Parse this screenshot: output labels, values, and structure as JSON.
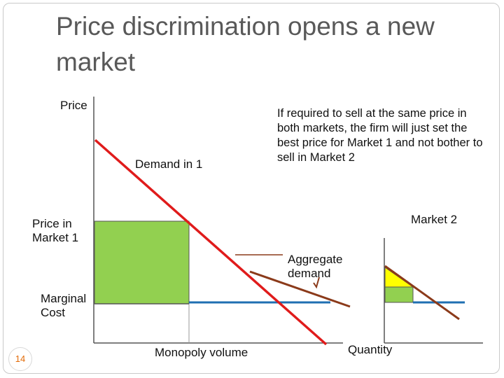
{
  "slide": {
    "title_line1": "Price discrimination opens a new",
    "title_line2": "market",
    "slide_number": "14"
  },
  "labels": {
    "price_axis": "Price",
    "demand_in_1": "Demand in 1",
    "price_in_market_1_line1": "Price in",
    "price_in_market_1_line2": "Market 1",
    "marginal_cost_line1": "Marginal",
    "marginal_cost_line2": "Cost",
    "monopoly_volume": "Monopoly volume",
    "quantity": "Quantity",
    "market_2": "Market 2",
    "aggregate_demand_line1": "Aggregate",
    "aggregate_demand_line2": "demand"
  },
  "note": {
    "text": "If required to sell at the same price in both markets, the firm will just set the best price for Market 1 and not bother to sell in Market 2"
  },
  "colors": {
    "demand_line": "#e01b1b",
    "aggregate_demand": "#8b3a1a",
    "marginal_cost": "#1f6fb2",
    "profit_area": "#92d050",
    "consumer_area": "#ffff00",
    "axis": "#555555",
    "title": "#595959",
    "slide_number": "#e36c09"
  }
}
